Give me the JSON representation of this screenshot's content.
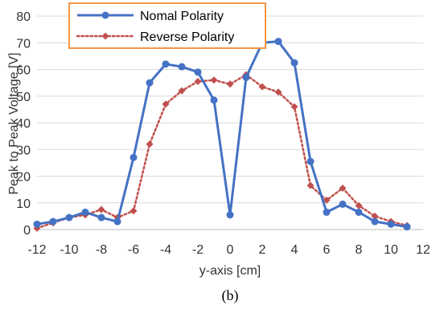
{
  "chart_data": {
    "type": "line",
    "x": [
      -12,
      -11,
      -10,
      -9,
      -8,
      -7,
      -6,
      -5,
      -4,
      -3,
      -2,
      -1,
      0,
      1,
      2,
      3,
      4,
      5,
      6,
      7,
      8,
      9,
      10,
      11
    ],
    "series": [
      {
        "name": "Nomal Polarity",
        "color": "#4472C4",
        "marker": "circle",
        "line": "solid",
        "values": [
          2,
          3,
          4.5,
          6.5,
          4.5,
          3,
          27,
          55,
          62,
          61,
          59,
          48.5,
          5.5,
          57,
          70,
          70.5,
          62.5,
          25.5,
          6.5,
          9.5,
          6.5,
          3,
          2,
          1
        ]
      },
      {
        "name": "Reverse Polarity",
        "color": "#C0504D",
        "marker": "diamond",
        "line": "dotted",
        "values": [
          0.5,
          2.5,
          4.5,
          5.5,
          7.5,
          4.5,
          7,
          32,
          47,
          52,
          55.5,
          56,
          54.5,
          58,
          53.5,
          51.5,
          46,
          16.5,
          11,
          15.5,
          9,
          5,
          3,
          1.5
        ]
      }
    ],
    "xlabel": "y-axis [cm]",
    "ylabel": "Peak to Peak Voltage [V]",
    "xlim": [
      -12,
      12
    ],
    "ylim": [
      0,
      80
    ],
    "xticks": [
      "-12",
      "-10",
      "-8",
      "-6",
      "-4",
      "-2",
      "0",
      "2",
      "4",
      "6",
      "8",
      "10",
      "12"
    ],
    "yticks": [
      "0",
      "10",
      "20",
      "30",
      "40",
      "50",
      "60",
      "70",
      "80"
    ],
    "grid": "horizontal",
    "legend_position": "top-left",
    "legend_border_color": "#F79646",
    "caption": "(b)"
  }
}
